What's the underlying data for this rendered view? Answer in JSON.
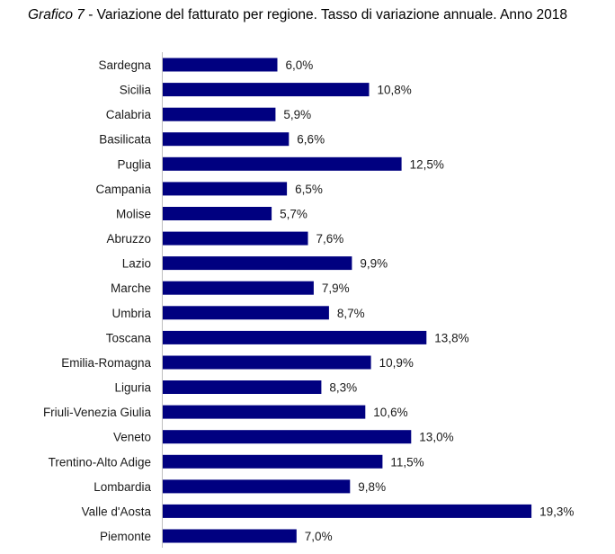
{
  "header": {
    "title_lead": "Grafico 7",
    "title_rest": " - Variazione del fatturato per regione. Tasso di variazione annuale. Anno 2018"
  },
  "chart_data": {
    "type": "bar",
    "orientation": "horizontal",
    "title": "Grafico 7 - Variazione del fatturato per regione. Tasso di variazione annuale. Anno 2018",
    "categories": [
      "Sardegna",
      "Sicilia",
      "Calabria",
      "Basilicata",
      "Puglia",
      "Campania",
      "Molise",
      "Abruzzo",
      "Lazio",
      "Marche",
      "Umbria",
      "Toscana",
      "Emilia-Romagna",
      "Liguria",
      "Friuli-Venezia Giulia",
      "Veneto",
      "Trentino-Alto Adige",
      "Lombardia",
      "Valle d'Aosta",
      "Piemonte"
    ],
    "values": [
      6.0,
      10.8,
      5.9,
      6.6,
      12.5,
      6.5,
      5.7,
      7.6,
      9.9,
      7.9,
      8.7,
      13.8,
      10.9,
      8.3,
      10.6,
      13.0,
      11.5,
      9.8,
      19.3,
      7.0
    ],
    "value_labels": [
      "6,0%",
      "10,8%",
      "5,9%",
      "6,6%",
      "12,5%",
      "6,5%",
      "5,7%",
      "7,6%",
      "9,9%",
      "7,9%",
      "8,7%",
      "13,8%",
      "10,9%",
      "8,3%",
      "10,6%",
      "13,0%",
      "11,5%",
      "9,8%",
      "19,3%",
      "7,0%"
    ],
    "xlim": [
      0,
      20
    ],
    "grid": false,
    "legend": "none",
    "bar_color": "#000080"
  }
}
